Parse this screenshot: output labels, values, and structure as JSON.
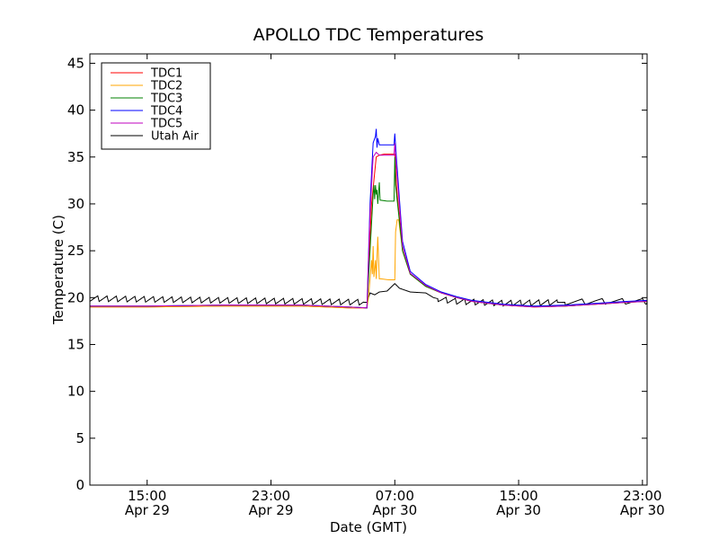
{
  "chart_data": {
    "type": "line",
    "title": "APOLLO TDC Temperatures",
    "xlabel": "Date (GMT)",
    "ylabel": "Temperature (C)",
    "ylim": [
      0,
      46
    ],
    "xlim_hours": [
      11.3,
      47.3
    ],
    "x_units": "hours since Apr 29 00:00 GMT",
    "grid": false,
    "legend_position": "top-left",
    "y_ticks": [
      0,
      5,
      10,
      15,
      20,
      25,
      30,
      35,
      40,
      45
    ],
    "y_tick_labels": [
      "0",
      "5",
      "10",
      "15",
      "20",
      "25",
      "30",
      "35",
      "40",
      "45"
    ],
    "x_ticks": [
      {
        "hour": 15,
        "line1": "15:00",
        "line2": "Apr 29"
      },
      {
        "hour": 23,
        "line1": "23:00",
        "line2": "Apr 29"
      },
      {
        "hour": 31,
        "line1": "07:00",
        "line2": "Apr 30"
      },
      {
        "hour": 39,
        "line1": "15:00",
        "line2": "Apr 30"
      },
      {
        "hour": 47,
        "line1": "23:00",
        "line2": "Apr 30"
      }
    ],
    "series": [
      {
        "name": "TDC1",
        "color": "#ff0000",
        "points": [
          [
            11.3,
            19.0
          ],
          [
            15,
            19.0
          ],
          [
            20,
            19.1
          ],
          [
            25,
            19.1
          ],
          [
            28,
            18.9
          ],
          [
            29.2,
            18.9
          ],
          [
            29.5,
            30
          ],
          [
            29.8,
            35
          ],
          [
            30,
            35.2
          ],
          [
            30.3,
            35.3
          ],
          [
            31,
            35.3
          ],
          [
            31.1,
            32
          ],
          [
            31.5,
            25
          ],
          [
            32,
            22.5
          ],
          [
            33,
            21.2
          ],
          [
            34,
            20.5
          ],
          [
            35,
            20
          ],
          [
            36,
            19.6
          ],
          [
            38,
            19.2
          ],
          [
            40,
            19.0
          ],
          [
            42,
            19.1
          ],
          [
            44,
            19.3
          ],
          [
            46,
            19.5
          ],
          [
            47.3,
            19.6
          ]
        ]
      },
      {
        "name": "TDC2",
        "color": "#ffa500",
        "points": [
          [
            11.3,
            19.0
          ],
          [
            15,
            19.0
          ],
          [
            20,
            19.1
          ],
          [
            25,
            19.1
          ],
          [
            28,
            18.9
          ],
          [
            29.2,
            18.9
          ],
          [
            29.3,
            20
          ],
          [
            29.5,
            24
          ],
          [
            29.55,
            22.5
          ],
          [
            29.6,
            25.5
          ],
          [
            29.65,
            22.2
          ],
          [
            29.75,
            24
          ],
          [
            29.8,
            22
          ],
          [
            29.9,
            26.5
          ],
          [
            30,
            22.0
          ],
          [
            30.1,
            22.0
          ],
          [
            30.6,
            21.9
          ],
          [
            31,
            21.9
          ],
          [
            31.05,
            27
          ],
          [
            31.15,
            28.3
          ],
          [
            31.25,
            28.3
          ],
          [
            31.5,
            25
          ],
          [
            32,
            22.5
          ],
          [
            33,
            21.2
          ],
          [
            34,
            20.5
          ],
          [
            35,
            20
          ],
          [
            36,
            19.6
          ],
          [
            38,
            19.2
          ],
          [
            40,
            19.0
          ],
          [
            42,
            19.1
          ],
          [
            44,
            19.3
          ],
          [
            46,
            19.5
          ],
          [
            47.3,
            19.6
          ]
        ]
      },
      {
        "name": "TDC3",
        "color": "#008000",
        "points": [
          [
            11.3,
            19.1
          ],
          [
            15,
            19.1
          ],
          [
            20,
            19.2
          ],
          [
            25,
            19.2
          ],
          [
            28,
            19.0
          ],
          [
            29.2,
            18.9
          ],
          [
            29.4,
            25
          ],
          [
            29.6,
            31
          ],
          [
            29.65,
            32
          ],
          [
            29.7,
            30.5
          ],
          [
            29.75,
            32
          ],
          [
            29.8,
            31
          ],
          [
            29.85,
            31.5
          ],
          [
            29.9,
            30
          ],
          [
            30,
            32.3
          ],
          [
            30.05,
            30.4
          ],
          [
            30.5,
            30.3
          ],
          [
            30.95,
            30.3
          ],
          [
            31.0,
            35
          ],
          [
            31.05,
            32
          ],
          [
            31.5,
            25
          ],
          [
            32,
            22.5
          ],
          [
            33,
            21.2
          ],
          [
            34,
            20.5
          ],
          [
            35,
            20
          ],
          [
            36,
            19.6
          ],
          [
            38,
            19.2
          ],
          [
            40,
            19.1
          ],
          [
            42,
            19.1
          ],
          [
            44,
            19.3
          ],
          [
            46,
            19.5
          ],
          [
            47.3,
            19.6
          ]
        ]
      },
      {
        "name": "TDC4",
        "color": "#0000ff",
        "points": [
          [
            11.3,
            19.1
          ],
          [
            15,
            19.1
          ],
          [
            20,
            19.2
          ],
          [
            25,
            19.2
          ],
          [
            28,
            19.0
          ],
          [
            29.2,
            18.9
          ],
          [
            29.4,
            30
          ],
          [
            29.6,
            36.5
          ],
          [
            29.75,
            37.2
          ],
          [
            29.8,
            38.0
          ],
          [
            29.85,
            36.0
          ],
          [
            29.9,
            37.0
          ],
          [
            30,
            36.3
          ],
          [
            30.5,
            36.3
          ],
          [
            30.95,
            36.3
          ],
          [
            31.0,
            37.5
          ],
          [
            31.1,
            35
          ],
          [
            31.5,
            26
          ],
          [
            32,
            22.8
          ],
          [
            33,
            21.4
          ],
          [
            34,
            20.6
          ],
          [
            35,
            20.1
          ],
          [
            36,
            19.7
          ],
          [
            38,
            19.3
          ],
          [
            40,
            19.1
          ],
          [
            42,
            19.2
          ],
          [
            44,
            19.4
          ],
          [
            46,
            19.6
          ],
          [
            47.3,
            19.7
          ]
        ]
      },
      {
        "name": "TDC5",
        "color": "#bf00bf",
        "points": [
          [
            11.3,
            19.1
          ],
          [
            15,
            19.1
          ],
          [
            20,
            19.2
          ],
          [
            25,
            19.2
          ],
          [
            28,
            19.0
          ],
          [
            29.2,
            18.9
          ],
          [
            29.4,
            29
          ],
          [
            29.6,
            35
          ],
          [
            29.8,
            35.5
          ],
          [
            30,
            35.2
          ],
          [
            30.5,
            35.2
          ],
          [
            30.95,
            35.2
          ],
          [
            31.0,
            36.5
          ],
          [
            31.1,
            34
          ],
          [
            31.5,
            25.5
          ],
          [
            32,
            22.6
          ],
          [
            33,
            21.3
          ],
          [
            34,
            20.5
          ],
          [
            35,
            20
          ],
          [
            36,
            19.6
          ],
          [
            38,
            19.2
          ],
          [
            40,
            19.0
          ],
          [
            42,
            19.1
          ],
          [
            44,
            19.3
          ],
          [
            46,
            19.5
          ],
          [
            47.3,
            19.6
          ]
        ]
      },
      {
        "name": "Utah Air",
        "color": "#000000",
        "points": [
          [
            11.3,
            19.9
          ],
          [
            29.2,
            19.5
          ],
          [
            29.4,
            20.5
          ],
          [
            29.7,
            20.3
          ],
          [
            30,
            20.6
          ],
          [
            30.5,
            20.7
          ],
          [
            31,
            21.5
          ],
          [
            31.3,
            21.0
          ],
          [
            32,
            20.6
          ],
          [
            33,
            20.5
          ],
          [
            33.5,
            20.0
          ],
          [
            34,
            19.8
          ],
          [
            34.5,
            19.7
          ],
          [
            35,
            19.6
          ],
          [
            38,
            19.4
          ],
          [
            42,
            19.5
          ],
          [
            44,
            19.6
          ],
          [
            47.3,
            19.6
          ]
        ],
        "sawtooth": [
          {
            "from": 11.3,
            "to": 29.0,
            "period": 0.6,
            "amplitude": 0.6
          },
          {
            "from": 33.8,
            "to": 41.5,
            "period": 0.6,
            "amplitude": 0.6
          },
          {
            "from": 42.0,
            "to": 47.3,
            "period": 1.3,
            "amplitude": 0.6
          }
        ]
      }
    ]
  }
}
